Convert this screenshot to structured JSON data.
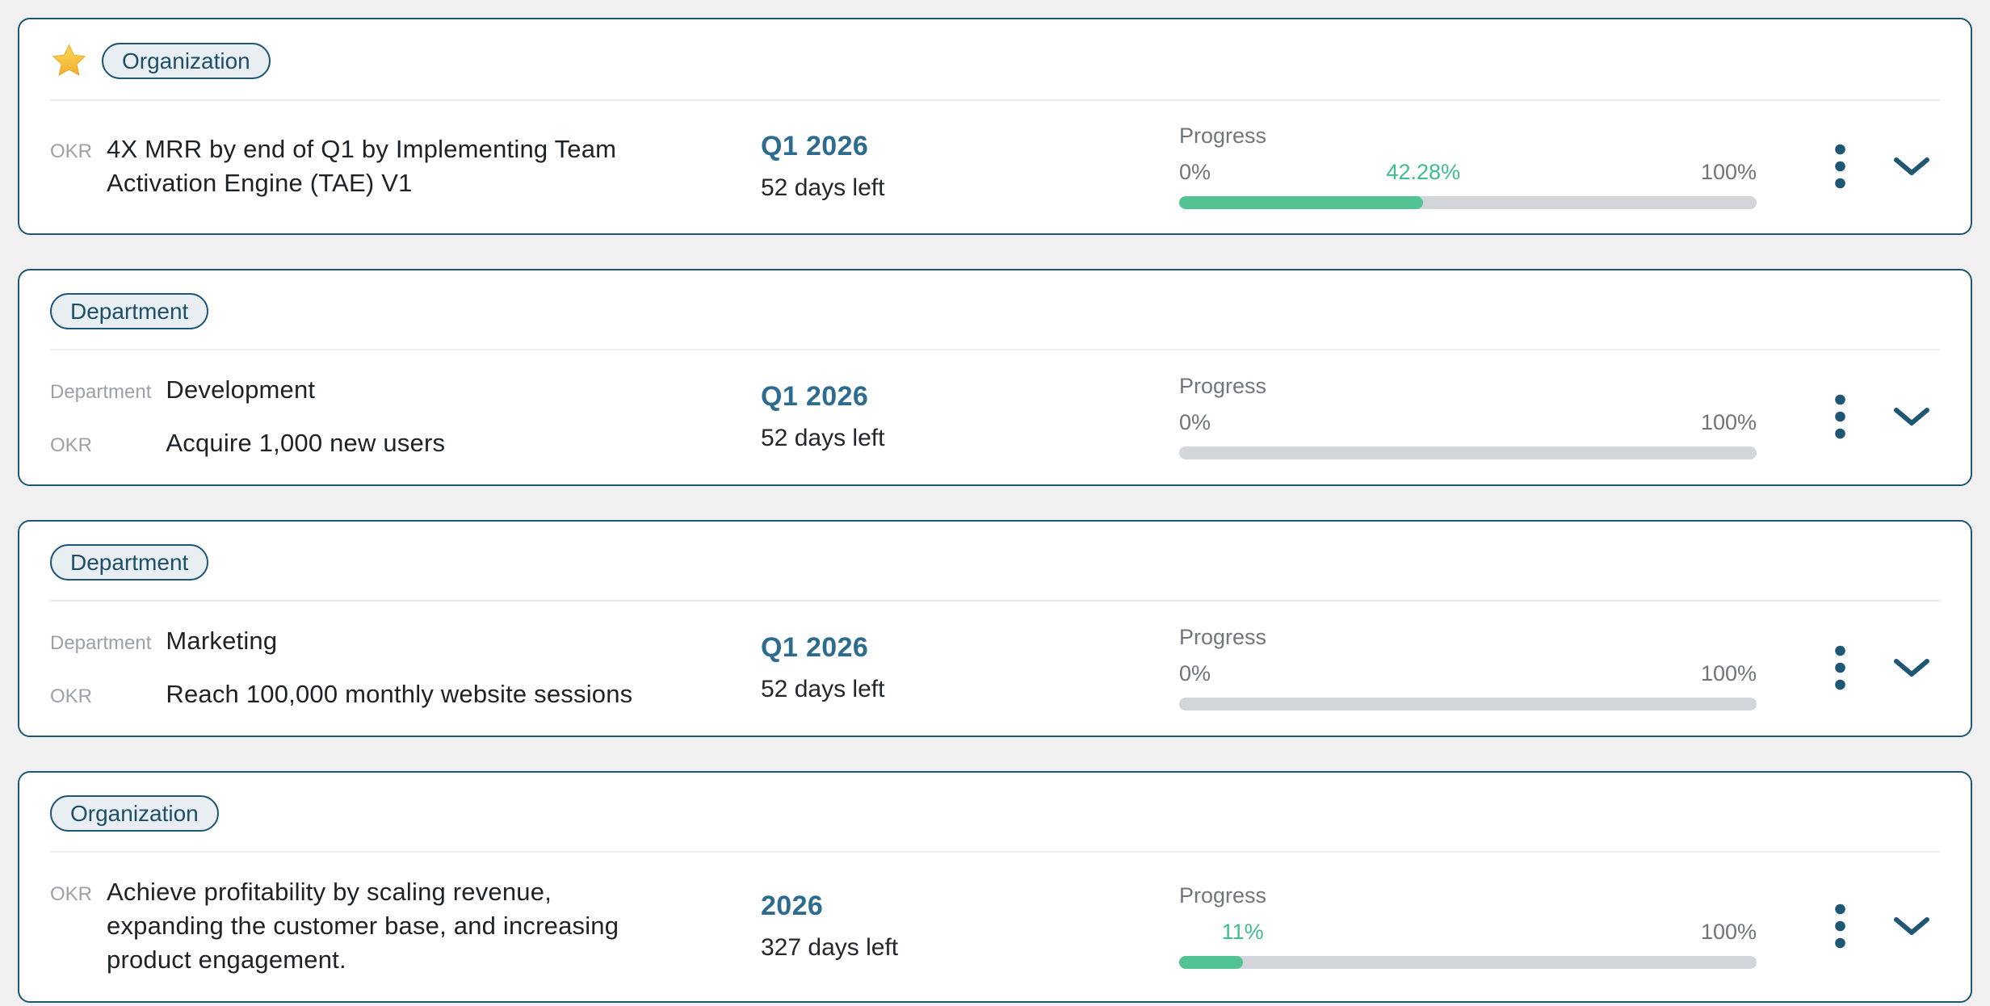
{
  "colors": {
    "page_background": "#f0f0f0",
    "card_border_teal": "#1f5674",
    "badge_background": "#e9eef3",
    "badge_text": "#1d4f66",
    "period_teal": "#2d6c8f",
    "progress_green_bar": "#52c493",
    "progress_green_text": "#3ebd8d",
    "progress_track_gray": "#d2d6da",
    "label_gray": "#9aa1a9",
    "progress_text_gray": "#6e747c",
    "title_text": "#1d2227"
  },
  "icons": {
    "star_icon": "⭐",
    "kebab_menu_icon": "⋮",
    "chevron_down_icon": "⌄"
  },
  "cards": [
    {
      "starred": true,
      "badge": "Organization",
      "rows": [
        {
          "label": "OKR",
          "text": "4X MRR by end of Q1 by Implementing Team Activation Engine (TAE) V1"
        }
      ],
      "period": "Q1 2026",
      "days_left": "52 days left",
      "progress": {
        "label": "Progress",
        "left_label": "0%",
        "current_label": "42.28%",
        "right_label": "100%",
        "value": 42.28
      }
    },
    {
      "starred": false,
      "badge": "Department",
      "rows": [
        {
          "label": "Department",
          "text": "Development"
        },
        {
          "label": "OKR",
          "text": "Acquire 1,000 new users"
        }
      ],
      "period": "Q1 2026",
      "days_left": "52 days left",
      "progress": {
        "label": "Progress",
        "left_label": "0%",
        "current_label": "",
        "right_label": "100%",
        "value": 0
      }
    },
    {
      "starred": false,
      "badge": "Department",
      "rows": [
        {
          "label": "Department",
          "text": "Marketing"
        },
        {
          "label": "OKR",
          "text": "Reach 100,000 monthly website sessions"
        }
      ],
      "period": "Q1 2026",
      "days_left": "52 days left",
      "progress": {
        "label": "Progress",
        "left_label": "",
        "current_label": "",
        "right_label": "100%",
        "value": 0,
        "left_label_fallback": "0%"
      }
    },
    {
      "starred": false,
      "badge": "Organization",
      "rows": [
        {
          "label": "OKR",
          "text": "Achieve profitability by scaling revenue, expanding the customer base, and increasing product engagement."
        }
      ],
      "period": "2026",
      "days_left": "327 days left",
      "progress": {
        "label": "Progress",
        "left_label": "",
        "current_label": "11%",
        "right_label": "100%",
        "value": 11
      }
    }
  ]
}
